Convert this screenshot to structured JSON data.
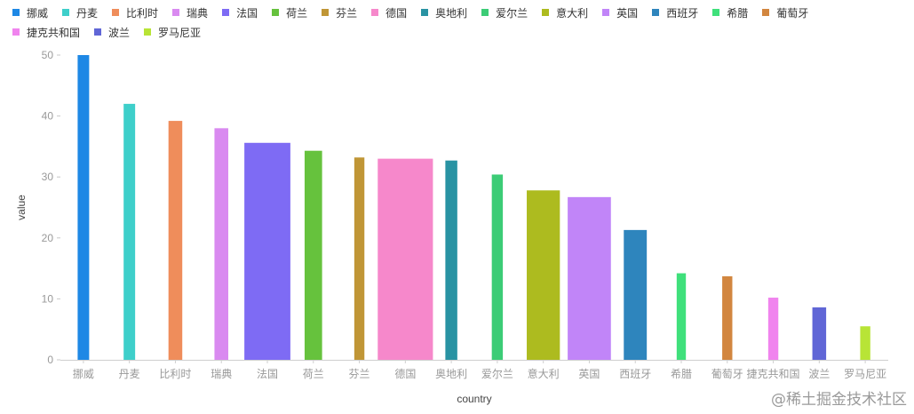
{
  "chart_data": {
    "type": "bar",
    "xlabel": "country",
    "ylabel": "value",
    "ylim": [
      0,
      50
    ],
    "yticks": [
      0,
      10,
      20,
      30,
      40,
      50
    ],
    "legend_position": "top-left",
    "categories": [
      "挪威",
      "丹麦",
      "比利时",
      "瑞典",
      "法国",
      "荷兰",
      "芬兰",
      "德国",
      "奥地利",
      "爱尔兰",
      "意大利",
      "英国",
      "西班牙",
      "希腊",
      "葡萄牙",
      "捷克共和国",
      "波兰",
      "罗马尼亚"
    ],
    "values": [
      50,
      42,
      39.2,
      38,
      35.6,
      34.3,
      33.2,
      33,
      32.7,
      30.4,
      27.8,
      26.7,
      21.3,
      14.2,
      13.7,
      10.2,
      8.6,
      5.5
    ],
    "bar_width_factor": [
      0.25,
      0.25,
      0.3,
      0.3,
      1,
      0.38,
      0.22,
      1.2,
      0.26,
      0.24,
      0.72,
      0.94,
      0.5,
      0.2,
      0.22,
      0.22,
      0.3,
      0.22
    ],
    "colors": [
      "#1e88e5",
      "#3ecfca",
      "#ef8d5b",
      "#d98af0",
      "#7e6bf4",
      "#66c23d",
      "#c09636",
      "#f688cb",
      "#2993a3",
      "#3ccc76",
      "#adbb1f",
      "#c185f8",
      "#2e85bd",
      "#3fe07b",
      "#d2863f",
      "#f084ee",
      "#6066d6",
      "#b8e436"
    ]
  },
  "watermark": "@稀土掘金技术社区"
}
